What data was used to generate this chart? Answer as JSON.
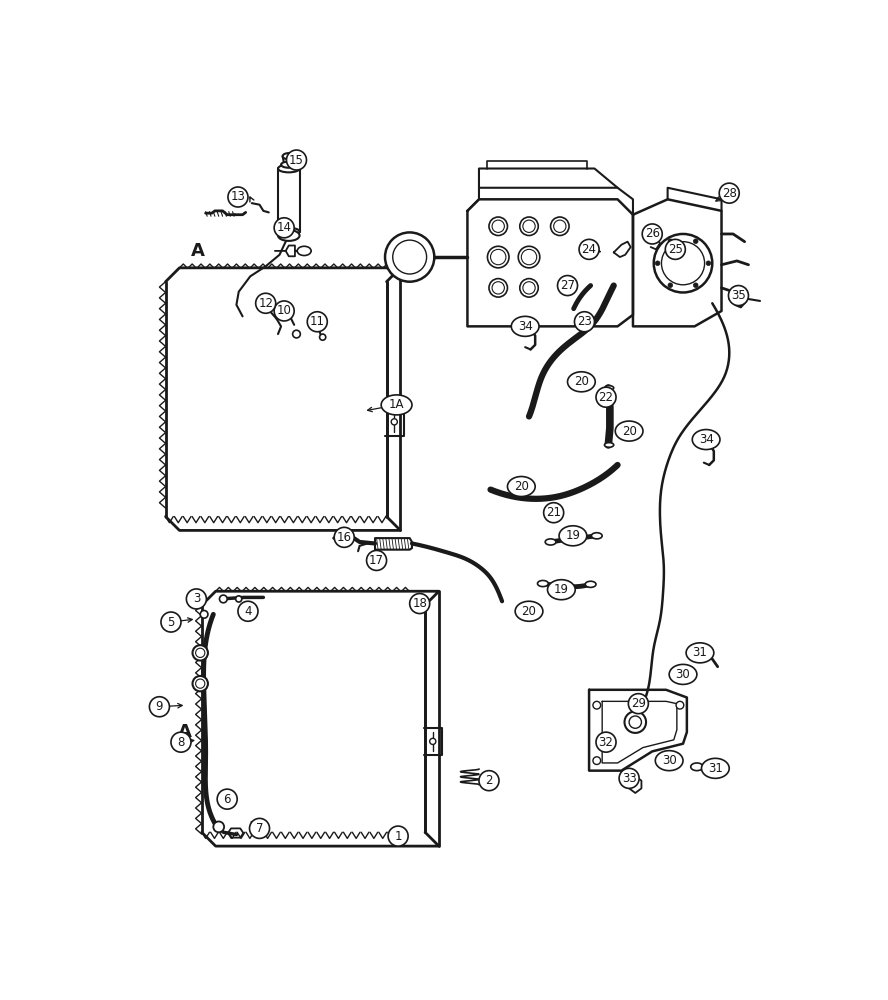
{
  "bg_color": "#ffffff",
  "line_color": "#1a1a1a",
  "border_color": "#cccccc"
}
